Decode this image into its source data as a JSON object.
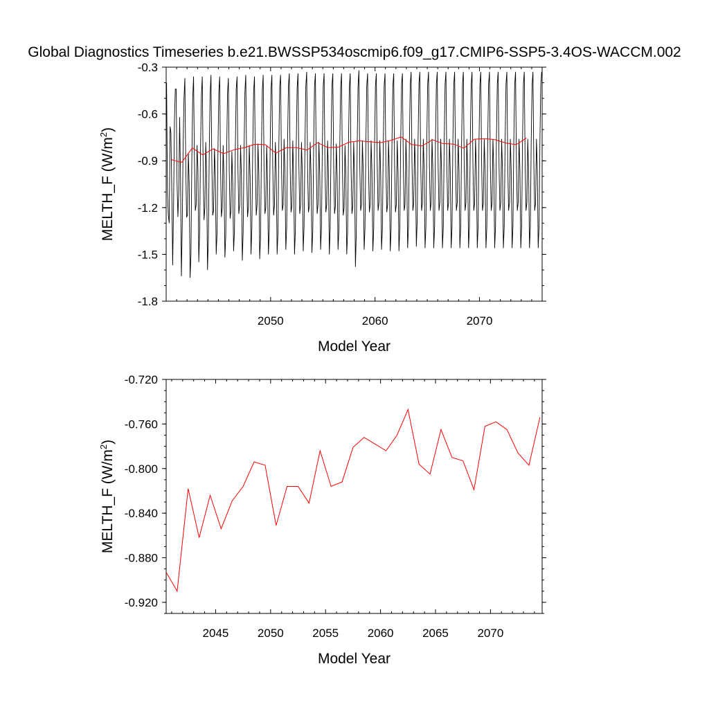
{
  "title": "Global Diagnostics Timeseries b.e21.BWSSP534oscmip6.f09_g17.CMIP6-SSP5-3.4OS-WACCM.002",
  "colors": {
    "monthly_line": "#000000",
    "annual_line": "#ff0000",
    "axes": "#000000",
    "background": "#ffffff"
  },
  "chart_data": [
    {
      "type": "line",
      "xlabel": "Model Year",
      "ylabel_main": "MELTH_F (W/m",
      "ylabel_sup": "2",
      "ylabel_tail": ")",
      "xlim": [
        2040.0,
        2076.0
      ],
      "ylim": [
        -1.8,
        -0.3
      ],
      "xticks": [
        2050,
        2060,
        2070
      ],
      "xtick_labels": [
        "2050",
        "2060",
        "2070"
      ],
      "yticks": [
        -1.8,
        -1.5,
        -1.2,
        -0.9,
        -0.6,
        -0.3
      ],
      "ytick_labels": [
        "-1.8",
        "-1.5",
        "-1.2",
        "-0.9",
        "-0.6",
        "-0.3"
      ],
      "grid": false,
      "series": [
        {
          "style": "monthly",
          "color": "#000000",
          "x_start": 2040.04,
          "x_step": 0.08333,
          "values": [
            -0.4,
            -1.1,
            -1.25,
            -1.3,
            -0.68,
            -0.72,
            -1.1,
            -1.57,
            -1.2,
            -0.65,
            -0.44,
            -0.44,
            -1.04,
            -1.26,
            -1.1,
            -0.62,
            -1.0,
            -1.64,
            -1.32,
            -0.8,
            -0.5,
            -0.37,
            -0.92,
            -1.26,
            -1.25,
            -0.85,
            -1.05,
            -1.65,
            -1.5,
            -0.9,
            -0.5,
            -0.36,
            -0.9,
            -1.22,
            -1.18,
            -0.8,
            -0.95,
            -1.55,
            -1.35,
            -0.82,
            -0.48,
            -0.36,
            -0.94,
            -1.28,
            -1.2,
            -0.78,
            -0.98,
            -1.6,
            -1.4,
            -0.86,
            -0.48,
            -0.35,
            -0.92,
            -1.25,
            -1.22,
            -0.82,
            -1.0,
            -1.5,
            -1.36,
            -0.84,
            -0.46,
            -0.36,
            -0.95,
            -1.26,
            -1.2,
            -0.8,
            -1.02,
            -1.52,
            -1.38,
            -0.86,
            -0.47,
            -0.37,
            -0.96,
            -1.27,
            -1.22,
            -0.84,
            -1.04,
            -1.48,
            -1.35,
            -0.82,
            -0.44,
            -0.36,
            -0.95,
            -1.24,
            -1.18,
            -0.8,
            -1.0,
            -1.54,
            -1.36,
            -0.84,
            -0.46,
            -0.35,
            -0.94,
            -1.26,
            -1.2,
            -0.8,
            -1.0,
            -1.5,
            -1.33,
            -0.82,
            -0.46,
            -0.36,
            -0.93,
            -1.25,
            -1.18,
            -0.79,
            -0.98,
            -1.53,
            -1.38,
            -0.83,
            -0.45,
            -0.35,
            -0.96,
            -1.24,
            -1.2,
            -0.8,
            -1.02,
            -1.5,
            -1.34,
            -0.82,
            -0.44,
            -0.35,
            -0.94,
            -1.25,
            -1.18,
            -0.78,
            -0.98,
            -1.5,
            -1.36,
            -0.8,
            -0.42,
            -0.35,
            -0.93,
            -1.22,
            -1.18,
            -0.76,
            -0.97,
            -1.47,
            -1.33,
            -0.8,
            -0.42,
            -0.34,
            -0.94,
            -1.23,
            -1.19,
            -0.77,
            -1.0,
            -1.5,
            -1.35,
            -0.8,
            -0.43,
            -0.34,
            -0.92,
            -1.24,
            -1.18,
            -0.78,
            -0.99,
            -1.48,
            -1.32,
            -0.79,
            -0.42,
            -0.33,
            -0.94,
            -1.23,
            -1.19,
            -0.78,
            -0.99,
            -1.49,
            -1.35,
            -0.8,
            -0.42,
            -0.34,
            -0.93,
            -1.24,
            -1.18,
            -0.78,
            -0.98,
            -1.47,
            -1.32,
            -0.79,
            -0.42,
            -0.34,
            -0.94,
            -1.23,
            -1.18,
            -0.77,
            -0.98,
            -1.5,
            -1.33,
            -0.79,
            -0.42,
            -0.34,
            -0.93,
            -1.24,
            -1.19,
            -0.79,
            -1.0,
            -1.47,
            -1.34,
            -0.8,
            -0.43,
            -0.34,
            -0.94,
            -1.25,
            -1.2,
            -0.8,
            -0.99,
            -1.5,
            -1.36,
            -0.8,
            -0.43,
            -0.34,
            -0.95,
            -1.24,
            -1.19,
            -0.78,
            -0.99,
            -1.58,
            -1.36,
            -0.81,
            -0.42,
            -0.32,
            -0.93,
            -1.22,
            -1.18,
            -0.77,
            -0.98,
            -1.47,
            -1.33,
            -0.79,
            -0.42,
            -0.34,
            -0.93,
            -1.23,
            -1.18,
            -0.77,
            -0.97,
            -1.48,
            -1.34,
            -0.79,
            -0.42,
            -0.34,
            -0.92,
            -1.22,
            -1.17,
            -0.77,
            -0.98,
            -1.47,
            -1.33,
            -0.79,
            -0.42,
            -0.34,
            -0.93,
            -1.23,
            -1.18,
            -0.77,
            -0.98,
            -1.48,
            -1.34,
            -0.78,
            -0.42,
            -0.34,
            -0.93,
            -1.23,
            -1.18,
            -0.77,
            -0.98,
            -1.48,
            -1.33,
            -0.78,
            -0.41,
            -0.34,
            -0.92,
            -1.22,
            -1.18,
            -0.76,
            -0.96,
            -1.46,
            -1.32,
            -0.78,
            -0.41,
            -0.33,
            -0.92,
            -1.22,
            -1.17,
            -0.76,
            -0.96,
            -1.45,
            -1.28,
            -0.76,
            -0.4,
            -0.33,
            -0.92,
            -1.22,
            -1.17,
            -0.76,
            -0.96,
            -1.46,
            -1.32,
            -0.77,
            -0.41,
            -0.33,
            -0.92,
            -1.22,
            -1.17,
            -0.76,
            -0.96,
            -1.46,
            -1.32,
            -0.77,
            -0.41,
            -0.33,
            -0.92,
            -1.22,
            -1.17,
            -0.76,
            -0.96,
            -1.46,
            -1.32,
            -0.77,
            -0.41,
            -0.33,
            -0.92,
            -1.22,
            -1.17,
            -0.76,
            -0.96,
            -1.46,
            -1.32,
            -0.77,
            -0.41,
            -0.33,
            -0.92,
            -1.22,
            -1.17,
            -0.76,
            -0.96,
            -1.46,
            -1.32,
            -0.77,
            -0.41,
            -0.33,
            -0.92,
            -1.22,
            -1.17,
            -0.76,
            -0.96,
            -1.46,
            -1.32,
            -0.77,
            -0.41,
            -0.33,
            -0.92,
            -1.22,
            -1.17,
            -0.76,
            -0.96,
            -1.46,
            -1.32,
            -0.77,
            -0.41,
            -0.33,
            -0.92,
            -1.22,
            -1.17,
            -0.76,
            -0.96,
            -1.46,
            -1.32,
            -0.77,
            -0.41,
            -0.33,
            -0.92,
            -1.22,
            -1.17,
            -0.76,
            -0.96,
            -1.46,
            -1.32,
            -0.77,
            -0.41,
            -0.33,
            -0.92,
            -1.22,
            -1.17,
            -0.76,
            -0.96,
            -1.46,
            -1.32,
            -0.77,
            -0.41,
            -0.33,
            -0.92,
            -1.22,
            -1.17,
            -0.76,
            -0.96,
            -1.46,
            -1.32,
            -0.77,
            -0.41,
            -0.33,
            -0.92,
            -1.22,
            -1.17,
            -0.76,
            -0.96,
            -1.46,
            -1.32,
            -0.77,
            -0.41,
            -0.33,
            -0.92,
            -1.22,
            -1.17,
            -0.76,
            -0.96,
            -1.46,
            -1.32,
            -0.77,
            -0.41,
            -0.33,
            -0.92,
            -1.22,
            -1.17,
            -0.76,
            -0.96,
            -1.46,
            -1.32,
            -0.77,
            -0.41,
            -0.33,
            -0.92,
            -1.22,
            -1.17,
            -0.76,
            -0.96,
            -1.46,
            -1.32,
            -0.77,
            -0.41,
            -0.33,
            -0.92,
            -1.22
          ]
        },
        {
          "style": "annual",
          "color": "#ff0000",
          "x": [
            2040.5,
            2041.5,
            2042.5,
            2043.5,
            2044.5,
            2045.5,
            2046.5,
            2047.5,
            2048.5,
            2049.5,
            2050.5,
            2051.5,
            2052.5,
            2053.5,
            2054.5,
            2055.5,
            2056.5,
            2057.5,
            2058.5,
            2059.5,
            2060.5,
            2061.5,
            2062.5,
            2063.5,
            2064.5,
            2065.5,
            2066.5,
            2067.5,
            2068.5,
            2069.5,
            2070.5,
            2071.5,
            2072.5,
            2073.5,
            2074.5
          ],
          "values": [
            -0.893,
            -0.91,
            -0.818,
            -0.862,
            -0.824,
            -0.854,
            -0.829,
            -0.816,
            -0.794,
            -0.797,
            -0.851,
            -0.816,
            -0.816,
            -0.831,
            -0.784,
            -0.816,
            -0.812,
            -0.781,
            -0.772,
            -0.778,
            -0.784,
            -0.77,
            -0.747,
            -0.796,
            -0.805,
            -0.765,
            -0.79,
            -0.793,
            -0.819,
            -0.762,
            -0.758,
            -0.765,
            -0.786,
            -0.797,
            -0.754
          ]
        }
      ]
    },
    {
      "type": "line",
      "xlabel": "Model Year",
      "ylabel_main": "MELTH_F (W/m",
      "ylabel_sup": "2",
      "ylabel_tail": ")",
      "xlim": [
        2040.5,
        2074.7
      ],
      "ylim": [
        -0.93,
        -0.72
      ],
      "xticks": [
        2045,
        2050,
        2055,
        2060,
        2065,
        2070
      ],
      "xtick_labels": [
        "2045",
        "2050",
        "2055",
        "2060",
        "2065",
        "2070"
      ],
      "yticks": [
        -0.92,
        -0.88,
        -0.84,
        -0.8,
        -0.76,
        -0.72
      ],
      "ytick_labels": [
        "-0.920",
        "-0.880",
        "-0.840",
        "-0.800",
        "-0.760",
        "-0.720"
      ],
      "grid": false,
      "series": [
        {
          "style": "annual",
          "color": "#ff0000",
          "x": [
            2040.5,
            2041.5,
            2042.5,
            2043.5,
            2044.5,
            2045.5,
            2046.5,
            2047.5,
            2048.5,
            2049.5,
            2050.5,
            2051.5,
            2052.5,
            2053.5,
            2054.5,
            2055.5,
            2056.5,
            2057.5,
            2058.5,
            2059.5,
            2060.5,
            2061.5,
            2062.5,
            2063.5,
            2064.5,
            2065.5,
            2066.5,
            2067.5,
            2068.5,
            2069.5,
            2070.5,
            2071.5,
            2072.5,
            2073.5,
            2074.5
          ],
          "values": [
            -0.893,
            -0.91,
            -0.818,
            -0.862,
            -0.824,
            -0.854,
            -0.829,
            -0.816,
            -0.794,
            -0.797,
            -0.851,
            -0.816,
            -0.816,
            -0.831,
            -0.784,
            -0.816,
            -0.812,
            -0.781,
            -0.772,
            -0.778,
            -0.784,
            -0.77,
            -0.747,
            -0.796,
            -0.805,
            -0.765,
            -0.79,
            -0.793,
            -0.819,
            -0.762,
            -0.758,
            -0.765,
            -0.786,
            -0.797,
            -0.754
          ]
        }
      ]
    }
  ]
}
